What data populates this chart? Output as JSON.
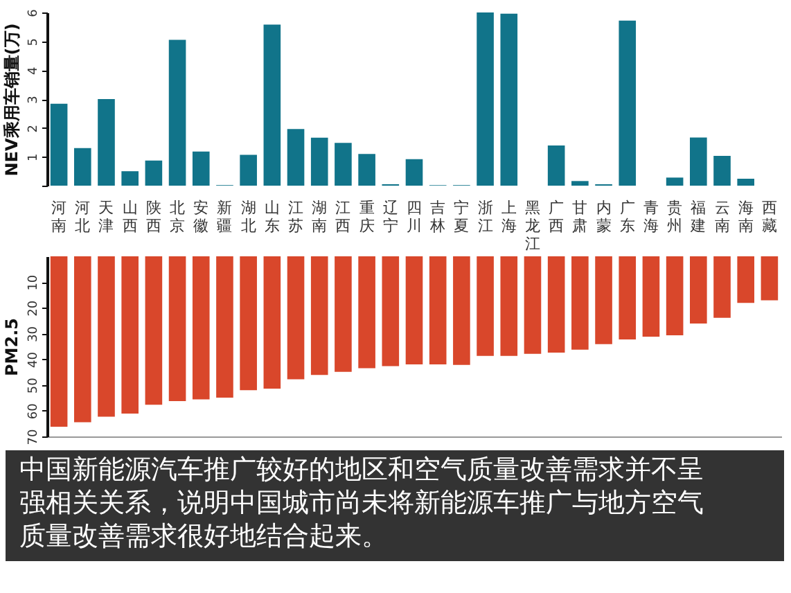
{
  "chart_data": [
    {
      "type": "bar",
      "ylabel": "NEV乘用车销量(万)",
      "categories": [
        "河南",
        "河北",
        "天津",
        "山西",
        "陕西",
        "北京",
        "安徽",
        "新疆",
        "湖北",
        "山东",
        "江苏",
        "湖南",
        "江西",
        "重庆",
        "辽宁",
        "四川",
        "吉林",
        "宁夏",
        "浙江",
        "上海",
        "黑龙江",
        "广西",
        "甘肃",
        "内蒙",
        "广东",
        "青海",
        "贵州",
        "福建",
        "云南",
        "海南",
        "西藏"
      ],
      "series": [
        {
          "color": "#11748a",
          "values": [
            2.84,
            1.3,
            3.0,
            0.5,
            0.87,
            5.05,
            1.18,
            0.02,
            1.07,
            5.58,
            1.96,
            1.66,
            1.48,
            1.1,
            0.05,
            0.92,
            0.02,
            0.02,
            6.0,
            5.96,
            0,
            1.39,
            0.16,
            0.05,
            5.72,
            0,
            0.28,
            1.67,
            1.03,
            0.24,
            0
          ]
        }
      ],
      "ylim": [
        0,
        6
      ],
      "yticks": [
        {
          "value": 0,
          "label": null
        },
        1,
        2,
        3,
        4,
        5,
        6
      ],
      "grid": false
    },
    {
      "type": "bar",
      "ylabel": "PM2.5",
      "categories": [
        "河南",
        "河北",
        "天津",
        "山西",
        "陕西",
        "北京",
        "安徽",
        "新疆",
        "湖北",
        "山东",
        "江苏",
        "湖南",
        "江西",
        "重庆",
        "辽宁",
        "四川",
        "吉林",
        "宁夏",
        "浙江",
        "上海",
        "黑龙江",
        "广西",
        "甘肃",
        "内蒙",
        "广东",
        "青海",
        "贵州",
        "福建",
        "云南",
        "海南",
        "西藏"
      ],
      "series": [
        {
          "color": "#d9472b",
          "values": [
            66.2,
            64.5,
            62.3,
            61.1,
            57.7,
            56.3,
            55.6,
            54.9,
            52,
            51.4,
            47.8,
            46.1,
            44.9,
            43.5,
            42.7,
            42.0,
            42.0,
            42.2,
            38.7,
            38.7,
            37.9,
            37.4,
            36.3,
            34.1,
            32.3,
            31.2,
            30.7,
            26.1,
            23.9,
            18.1,
            17.1
          ]
        }
      ],
      "ylim": [
        70,
        0
      ],
      "yticks": [
        10,
        20,
        30,
        40,
        50,
        60,
        70
      ],
      "tick_labels": "y",
      "grid": false,
      "annotations": [
        "中国新能源汽车推广较好的地区和空气质量改善需求并不呈强相关关系，说明中国城市尚未将新能源车推广与地方空气质量改善需求很好地结合起来。"
      ]
    }
  ]
}
